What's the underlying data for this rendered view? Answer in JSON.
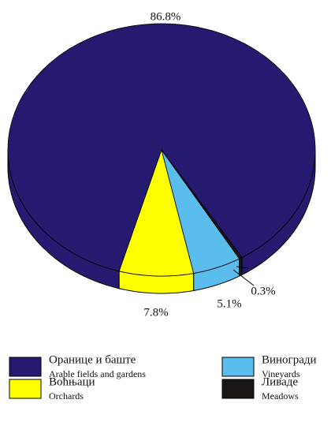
{
  "chart_data": {
    "type": "pie",
    "categories": [
      "Оранице и баште",
      "Воћњаци",
      "Виногради",
      "Ливаде"
    ],
    "categories_en": [
      "Arable fields and gardens",
      "Orchards",
      "Vineyards",
      "Meadows"
    ],
    "values": [
      86.8,
      7.8,
      5.1,
      0.3
    ],
    "value_labels": [
      "86.8%",
      "7.8%",
      "5.1%",
      "0.3%"
    ],
    "colors": [
      "#261a70",
      "#ffff00",
      "#5bbdee",
      "#1a1614"
    ]
  }
}
